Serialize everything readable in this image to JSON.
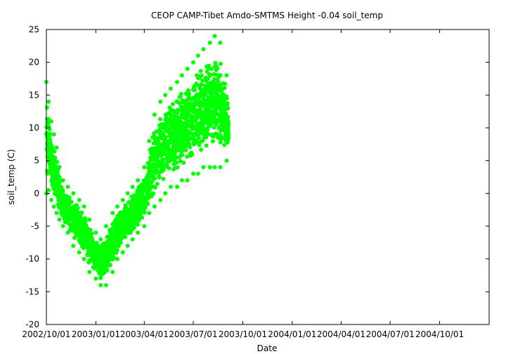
{
  "chart_data": {
    "type": "scatter",
    "title": "CEOP CAMP-Tibet Amdo-SMTMS Height -0.04 soil_temp",
    "xlabel": "Date",
    "ylabel": "soil_temp (C)",
    "x_ticks": [
      "2002/10/01",
      "2003/01/01",
      "2003/04/01",
      "2003/07/01",
      "2003/10/01",
      "2004/01/01",
      "2004/04/01",
      "2004/07/01",
      "2004/10/01"
    ],
    "x_range": [
      "2002/10/01",
      "2005/01/01"
    ],
    "y_ticks": [
      -20,
      -15,
      -10,
      -5,
      0,
      5,
      10,
      15,
      20,
      25
    ],
    "ylim": [
      -20,
      25
    ],
    "grid": false,
    "marker_color": "#00ff00",
    "series": [
      {
        "x": [
          "2002/10/01",
          "2002/10/05",
          "2002/10/10",
          "2002/10/15",
          "2002/10/20",
          "2002/10/25",
          "2002/11/01",
          "2002/11/10",
          "2002/11/20",
          "2002/12/01",
          "2002/12/10",
          "2002/12/20",
          "2003/01/01",
          "2003/01/10",
          "2003/01/20",
          "2003/02/01",
          "2003/02/10",
          "2003/02/20",
          "2003/03/01",
          "2003/03/10",
          "2003/03/20",
          "2003/04/01",
          "2003/04/10",
          "2003/04/20",
          "2003/05/01",
          "2003/05/10",
          "2003/05/20",
          "2003/06/01",
          "2003/06/10",
          "2003/06/20",
          "2003/07/01",
          "2003/07/10",
          "2003/07/20",
          "2003/08/01",
          "2003/08/10",
          "2003/08/20",
          "2003/09/01",
          "2003/09/05"
        ],
        "ymin": [
          0,
          0.5,
          -1,
          -2,
          -3,
          -4,
          -5,
          -6,
          -8,
          -9,
          -10,
          -12,
          -13,
          -14,
          -14,
          -12,
          -10,
          -9,
          -8,
          -7,
          -6,
          -5,
          -3,
          -2,
          -1,
          0,
          1,
          1,
          2,
          2,
          3,
          3,
          4,
          4,
          4,
          4,
          5,
          5
        ],
        "ymax": [
          17,
          14,
          11,
          9,
          7,
          4,
          2,
          1,
          0,
          -1,
          -2,
          -4,
          -6,
          -7,
          -5,
          -3,
          -2,
          -1,
          0,
          1,
          2,
          4,
          8,
          12,
          14,
          15,
          16,
          17,
          18,
          19,
          20,
          21,
          22,
          23,
          24,
          23,
          18,
          16
        ]
      }
    ]
  }
}
